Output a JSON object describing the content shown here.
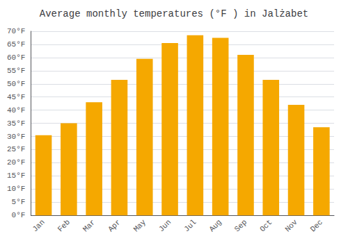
{
  "chart_data": {
    "type": "bar",
    "title": "Average monthly temperatures (°F ) in Jalżabet",
    "categories": [
      "Jan",
      "Feb",
      "Mar",
      "Apr",
      "May",
      "Jun",
      "Jul",
      "Aug",
      "Sep",
      "Oct",
      "Nov",
      "Dec"
    ],
    "values": [
      30.5,
      35.0,
      43.0,
      51.5,
      59.5,
      65.5,
      68.5,
      67.5,
      61.0,
      51.5,
      42.0,
      33.5
    ],
    "color": "#F5A800",
    "ylim": [
      0,
      70
    ],
    "yticks": [
      {
        "value": 0,
        "label": "0°F"
      },
      {
        "value": 5,
        "label": "5°F"
      },
      {
        "value": 10,
        "label": "10°F"
      },
      {
        "value": 15,
        "label": "15°F"
      },
      {
        "value": 20,
        "label": "20°F"
      },
      {
        "value": 25,
        "label": "25°F"
      },
      {
        "value": 30,
        "label": "30°F"
      },
      {
        "value": 35,
        "label": "35°F"
      },
      {
        "value": 40,
        "label": "40°F"
      },
      {
        "value": 45,
        "label": "45°F"
      },
      {
        "value": 50,
        "label": "50°F"
      },
      {
        "value": 55,
        "label": "55°F"
      },
      {
        "value": 60,
        "label": "60°F"
      },
      {
        "value": 65,
        "label": "65°F"
      },
      {
        "value": 70,
        "label": "70°F"
      }
    ],
    "grid": true
  }
}
